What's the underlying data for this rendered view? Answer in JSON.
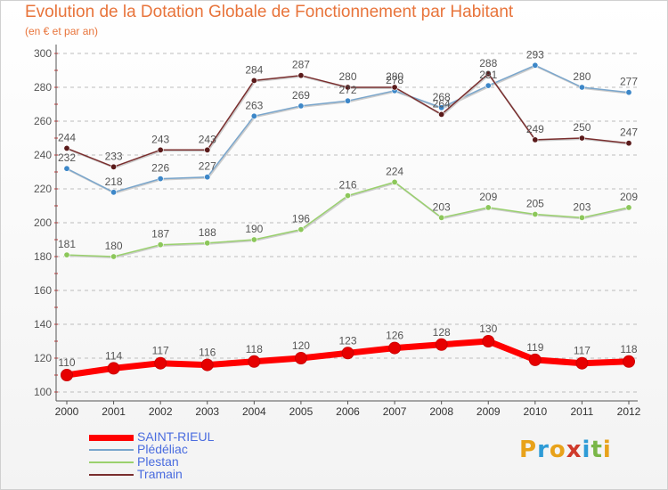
{
  "header": {
    "title": "Evolution de la Dotation Globale de Fonctionnement par Habitant",
    "subtitle": "(en € et par an)"
  },
  "logo": {
    "text": "Proxiti",
    "colors": [
      "#e8a21a",
      "#2e9bd6",
      "#e8a21a",
      "#cf3a2b",
      "#2e9bd6",
      "#7ab648",
      "#e8a21a"
    ]
  },
  "colors": {
    "grid": "#bdbdbd",
    "axis": "#555555",
    "label": "#555555",
    "title": "#e8743b"
  },
  "chart_data": {
    "type": "line",
    "title": "Evolution de la Dotation Globale de Fonctionnement par Habitant",
    "subtitle": "(en € et par an)",
    "x": [
      "2000",
      "2001",
      "2002",
      "2003",
      "2004",
      "2005",
      "2006",
      "2007",
      "2008",
      "2009",
      "2010",
      "2011",
      "2012"
    ],
    "ylim": [
      100,
      300
    ],
    "yticks": [
      100,
      120,
      140,
      160,
      180,
      200,
      220,
      240,
      260,
      280,
      300
    ],
    "grid": true,
    "legend_position": "bottom-left",
    "series": [
      {
        "name": "SAINT-RIEUL",
        "color": "#ff0000",
        "marker": "#e60000",
        "width": 7,
        "values": [
          110,
          114,
          117,
          116,
          118,
          120,
          123,
          126,
          128,
          130,
          119,
          117,
          118
        ]
      },
      {
        "name": "Plédéliac",
        "color": "#7aa6cc",
        "marker": "#3d87c8",
        "width": 1.5,
        "values": [
          232,
          218,
          226,
          227,
          263,
          269,
          272,
          278,
          268,
          281,
          293,
          280,
          277
        ]
      },
      {
        "name": "Plestan",
        "color": "#9ad16e",
        "marker": "#8cc75a",
        "width": 1.5,
        "values": [
          181,
          180,
          187,
          188,
          190,
          196,
          216,
          224,
          203,
          209,
          205,
          203,
          209
        ]
      },
      {
        "name": "Tramain",
        "color": "#7a2e2e",
        "marker": "#5a1a1a",
        "width": 1.5,
        "values": [
          244,
          233,
          243,
          243,
          284,
          287,
          280,
          280,
          264,
          288,
          249,
          250,
          247
        ]
      }
    ]
  }
}
